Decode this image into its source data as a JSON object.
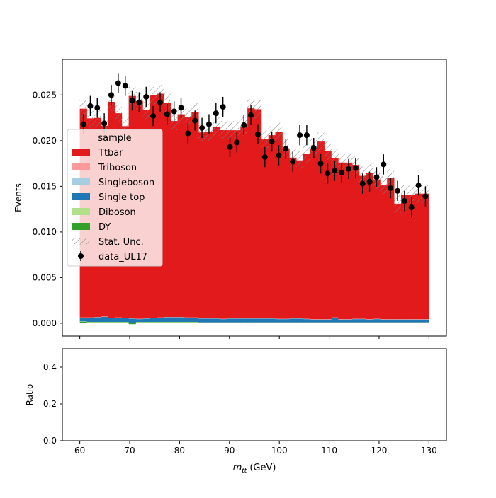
{
  "chart_data": {
    "type": "bar",
    "subtype": "stacked-step-histogram-with-data-points",
    "xlabel_main": "m",
    "xlabel_sub": "tt",
    "xlabel_unit": "(GeV)",
    "ylabel_top": "Events",
    "ylabel_bottom": "Ratio",
    "xlim": [
      56.5,
      133.5
    ],
    "ylim_top": [
      -0.0014,
      0.0289
    ],
    "ylim_bottom": [
      0.0,
      0.5
    ],
    "xticks": [
      "60",
      "70",
      "80",
      "90",
      "100",
      "110",
      "120",
      "130"
    ],
    "xtick_values": [
      60,
      70,
      80,
      90,
      100,
      110,
      120,
      130
    ],
    "yticks_top": [
      "0.000",
      "0.005",
      "0.010",
      "0.015",
      "0.020",
      "0.025"
    ],
    "ytick_values_top": [
      0,
      0.005,
      0.01,
      0.015,
      0.02,
      0.025
    ],
    "yticks_bottom": [
      "0.0",
      "0.2",
      "0.4"
    ],
    "ytick_values_bottom": [
      0.0,
      0.2,
      0.4
    ],
    "bin_edges": [
      60,
      61.4,
      62.8,
      64.2,
      65.6,
      67.0,
      68.4,
      69.8,
      71.2,
      72.6,
      74.0,
      75.4,
      76.8,
      78.2,
      79.6,
      81.0,
      82.4,
      83.8,
      85.2,
      86.6,
      88.0,
      89.4,
      90.8,
      92.2,
      93.6,
      95.0,
      96.4,
      97.8,
      99.2,
      100.6,
      102.0,
      103.4,
      104.8,
      106.2,
      107.6,
      109.0,
      110.4,
      111.8,
      113.2,
      114.6,
      116.0,
      117.4,
      118.8,
      120.2,
      121.6,
      123.0,
      124.4,
      125.8,
      127.2,
      128.6,
      130.0
    ],
    "series": [
      {
        "name": "DY",
        "color": "#33a02c",
        "values": [
          0.00015,
          0.0001,
          0.0001,
          0.0001,
          0.0001,
          0.0001,
          0.0001,
          -0.0001,
          0.0001,
          0.0001,
          0.0001,
          0.0001,
          0.0001,
          0.0001,
          0.0001,
          0.0001,
          0.0001,
          5e-05,
          5e-05,
          5e-05,
          5e-05,
          5e-05,
          5e-05,
          5e-05,
          5e-05,
          5e-05,
          5e-05,
          5e-05,
          5e-05,
          5e-05,
          5e-05,
          5e-05,
          5e-05,
          5e-05,
          5e-05,
          5e-05,
          5e-05,
          5e-05,
          5e-05,
          5e-05,
          5e-05,
          5e-05,
          5e-05,
          5e-05,
          5e-05,
          5e-05,
          5e-05,
          5e-05,
          5e-05,
          5e-05
        ]
      },
      {
        "name": "Diboson",
        "color": "#b2df8a",
        "values": [
          5e-05,
          5e-05,
          5e-05,
          5e-05,
          5e-05,
          5e-05,
          5e-05,
          5e-05,
          5e-05,
          5e-05,
          5e-05,
          5e-05,
          5e-05,
          5e-05,
          5e-05,
          5e-05,
          5e-05,
          5e-05,
          5e-05,
          5e-05,
          5e-05,
          5e-05,
          5e-05,
          5e-05,
          5e-05,
          5e-05,
          5e-05,
          5e-05,
          5e-05,
          5e-05,
          5e-05,
          5e-05,
          5e-05,
          5e-05,
          5e-05,
          5e-05,
          5e-05,
          5e-05,
          5e-05,
          5e-05,
          5e-05,
          5e-05,
          5e-05,
          5e-05,
          5e-05,
          5e-05,
          5e-05,
          5e-05,
          5e-05,
          5e-05
        ]
      },
      {
        "name": "Single top",
        "color": "#1f78b4",
        "values": [
          0.0004,
          0.00045,
          0.0005,
          0.00055,
          0.0004,
          0.00045,
          0.0004,
          0.00045,
          0.0003,
          0.00035,
          0.0004,
          0.00045,
          0.0005,
          0.0005,
          0.0005,
          0.00045,
          0.00045,
          0.0004,
          0.0004,
          0.0004,
          0.00035,
          0.0004,
          0.0004,
          0.0004,
          0.0004,
          0.0004,
          0.0004,
          0.0004,
          0.00035,
          0.00035,
          0.0004,
          0.0004,
          0.00035,
          0.0003,
          0.0003,
          0.0003,
          0.0005,
          0.0003,
          0.0003,
          0.00035,
          0.00035,
          0.0003,
          0.00035,
          0.0003,
          0.0003,
          0.0003,
          0.0003,
          0.0003,
          0.0003,
          0.0003
        ]
      },
      {
        "name": "Singleboson",
        "color": "#a6cee3",
        "values": [
          3e-05,
          3e-05,
          3e-05,
          3e-05,
          3e-05,
          3e-05,
          3e-05,
          3e-05,
          3e-05,
          3e-05,
          3e-05,
          3e-05,
          3e-05,
          3e-05,
          3e-05,
          3e-05,
          3e-05,
          3e-05,
          3e-05,
          3e-05,
          3e-05,
          3e-05,
          3e-05,
          3e-05,
          3e-05,
          3e-05,
          3e-05,
          3e-05,
          3e-05,
          3e-05,
          3e-05,
          3e-05,
          3e-05,
          3e-05,
          3e-05,
          3e-05,
          3e-05,
          3e-05,
          3e-05,
          3e-05,
          3e-05,
          3e-05,
          3e-05,
          3e-05,
          3e-05,
          3e-05,
          3e-05,
          3e-05,
          3e-05,
          3e-05
        ]
      },
      {
        "name": "Triboson",
        "color": "#fb9a99",
        "values": [
          1e-05,
          1e-05,
          1e-05,
          1e-05,
          1e-05,
          1e-05,
          1e-05,
          1e-05,
          1e-05,
          1e-05,
          1e-05,
          1e-05,
          1e-05,
          1e-05,
          1e-05,
          1e-05,
          1e-05,
          1e-05,
          1e-05,
          1e-05,
          1e-05,
          1e-05,
          1e-05,
          1e-05,
          1e-05,
          1e-05,
          1e-05,
          1e-05,
          1e-05,
          1e-05,
          1e-05,
          1e-05,
          1e-05,
          1e-05,
          1e-05,
          1e-05,
          1e-05,
          1e-05,
          1e-05,
          1e-05,
          1e-05,
          1e-05,
          1e-05,
          1e-05,
          1e-05,
          1e-05,
          1e-05,
          1e-05,
          1e-05,
          1e-05
        ]
      },
      {
        "name": "Ttbar",
        "color": "#e31a1c",
        "values": [
          0.02286,
          0.0218,
          0.0218,
          0.0209,
          0.02366,
          0.02236,
          0.021,
          0.02436,
          0.02386,
          0.02286,
          0.0244,
          0.0245,
          0.02346,
          0.02146,
          0.0222,
          0.02196,
          0.02246,
          0.02036,
          0.02046,
          0.021,
          0.02066,
          0.0206,
          0.0206,
          0.021,
          0.023,
          0.0229,
          0.0196,
          0.02006,
          0.02046,
          0.01866,
          0.0176,
          0.0173,
          0.01806,
          0.0187,
          0.01946,
          0.01846,
          0.01746,
          0.01716,
          0.01716,
          0.01686,
          0.01566,
          0.01606,
          0.01526,
          0.01466,
          0.01546,
          0.01266,
          0.01366,
          0.01366,
          0.01376,
          0.01376
        ]
      }
    ],
    "stat_unc": [
      0.001,
      0.001,
      0.001,
      0.001,
      0.001,
      0.001,
      0.001,
      0.001,
      0.001,
      0.001,
      0.001,
      0.001,
      0.001,
      0.001,
      0.001,
      0.001,
      0.001,
      0.001,
      0.001,
      0.001,
      0.001,
      0.001,
      0.001,
      0.001,
      0.001,
      0.001,
      0.001,
      0.001,
      0.001,
      0.001,
      0.001,
      0.001,
      0.001,
      0.001,
      0.001,
      0.001,
      0.001,
      0.001,
      0.001,
      0.001,
      0.001,
      0.001,
      0.001,
      0.001,
      0.001,
      0.001,
      0.001,
      0.001,
      0.001,
      0.001
    ],
    "data_points": {
      "name": "data_UL17",
      "x": [
        60.7,
        62.1,
        63.5,
        64.9,
        66.3,
        67.7,
        69.1,
        70.5,
        71.9,
        73.3,
        74.7,
        76.1,
        77.5,
        78.9,
        80.3,
        81.7,
        83.1,
        84.5,
        85.9,
        87.3,
        88.7,
        90.1,
        91.5,
        92.9,
        94.3,
        95.7,
        97.1,
        98.5,
        99.9,
        101.3,
        102.7,
        104.1,
        105.5,
        106.9,
        108.3,
        109.7,
        111.1,
        112.5,
        113.9,
        115.3,
        116.7,
        118.1,
        119.5,
        120.9,
        122.3,
        123.7,
        125.1,
        126.5,
        127.9,
        129.3
      ],
      "y": [
        0.0218,
        0.0238,
        0.0236,
        0.0219,
        0.025,
        0.0263,
        0.026,
        0.0244,
        0.0242,
        0.0248,
        0.0227,
        0.0242,
        0.0229,
        0.0232,
        0.0236,
        0.0208,
        0.0222,
        0.0214,
        0.0218,
        0.023,
        0.0237,
        0.0193,
        0.0198,
        0.0217,
        0.0228,
        0.0207,
        0.0182,
        0.0199,
        0.0184,
        0.0191,
        0.0177,
        0.0206,
        0.0206,
        0.0192,
        0.0175,
        0.0164,
        0.0167,
        0.0165,
        0.0169,
        0.017,
        0.0153,
        0.0155,
        0.016,
        0.0174,
        0.0148,
        0.0145,
        0.0134,
        0.0127,
        0.0151,
        0.0139
      ],
      "yerr": [
        0.0011,
        0.0011,
        0.0011,
        0.0011,
        0.0011,
        0.0011,
        0.0011,
        0.0011,
        0.0011,
        0.0011,
        0.0011,
        0.0011,
        0.0011,
        0.0011,
        0.0011,
        0.0011,
        0.0011,
        0.0011,
        0.0011,
        0.0011,
        0.0011,
        0.0011,
        0.0011,
        0.0011,
        0.0011,
        0.0011,
        0.0011,
        0.0011,
        0.0011,
        0.0011,
        0.0011,
        0.0011,
        0.0011,
        0.0011,
        0.0011,
        0.0011,
        0.0011,
        0.0011,
        0.0011,
        0.0011,
        0.0011,
        0.0011,
        0.0011,
        0.0011,
        0.0011,
        0.0011,
        0.0011,
        0.0011,
        0.0011,
        0.0011
      ]
    },
    "legend": {
      "title": "sample",
      "placement": "center-left",
      "entries": [
        {
          "label": "Ttbar",
          "kind": "patch",
          "color": "#e31a1c"
        },
        {
          "label": "Triboson",
          "kind": "patch",
          "color": "#fb9a99"
        },
        {
          "label": "Singleboson",
          "kind": "patch",
          "color": "#a6cee3"
        },
        {
          "label": "Single top",
          "kind": "patch",
          "color": "#1f78b4"
        },
        {
          "label": "Diboson",
          "kind": "patch",
          "color": "#b2df8a"
        },
        {
          "label": "DY",
          "kind": "patch",
          "color": "#33a02c"
        },
        {
          "label": "Stat. Unc.",
          "kind": "hatch",
          "color": "#808080"
        },
        {
          "label": "data_UL17",
          "kind": "errorbar",
          "color": "#000000"
        }
      ]
    }
  }
}
